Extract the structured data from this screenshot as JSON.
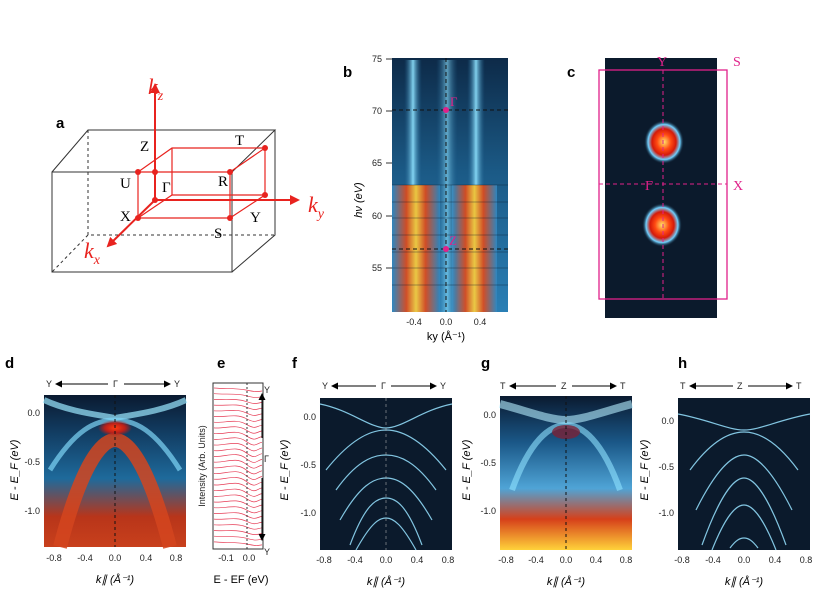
{
  "colors": {
    "bz_red": "#e8231f",
    "magenta": "#e0218a",
    "dark": "#0b1a2c"
  },
  "panels": {
    "a": {
      "label": "a",
      "axes": {
        "kz_base": "k",
        "kz_sub": "z",
        "ky_base": "k",
        "ky_sub": "y",
        "kx_base": "k",
        "kx_sub": "x"
      },
      "points": {
        "Z": "Z",
        "T": "T",
        "U": "U",
        "R": "R",
        "G": "Γ",
        "X": "X",
        "Y": "Y",
        "S": "S"
      }
    },
    "b": {
      "label": "b",
      "ylabel": "hν (eV)",
      "yticks": [
        "75",
        "70",
        "65",
        "60",
        "55"
      ],
      "xticks": [
        "-0.4",
        "0.0",
        "0.4"
      ],
      "xlabel": "ky (Å⁻¹)",
      "marker_top": "Γ",
      "marker_bottom": "Z"
    },
    "c": {
      "label": "c",
      "points": {
        "Y": "Y",
        "S": "S",
        "G": "Γ",
        "X": "X"
      }
    },
    "d": {
      "label": "d",
      "path": [
        "Y",
        "Γ",
        "Y"
      ],
      "ylabel": "E - E_F (eV)",
      "yticks": [
        "0.0",
        "-0.5",
        "-1.0"
      ],
      "xticks": [
        "-0.8",
        "-0.4",
        "0.0",
        "0.4",
        "0.8"
      ],
      "xlabel": "k∥ (Å⁻¹)"
    },
    "e": {
      "label": "e",
      "ylabel": "Intensity (Arb. Units)",
      "xticks": [
        "-0.1",
        "0.0"
      ],
      "xlabel": "E - EF (eV)",
      "right_labels": [
        "Y",
        "Γ",
        "Y"
      ]
    },
    "f": {
      "label": "f",
      "path": [
        "Y",
        "Γ",
        "Y"
      ],
      "ylabel": "E - E_F (eV)",
      "yticks": [
        "0.0",
        "-0.5",
        "-1.0"
      ],
      "xticks": [
        "-0.8",
        "-0.4",
        "0.0",
        "0.4",
        "0.8"
      ],
      "xlabel": "k∥ (Å⁻¹)"
    },
    "g": {
      "label": "g",
      "path": [
        "T",
        "Z",
        "T"
      ],
      "ylabel": "E - E_F (eV)",
      "yticks": [
        "0.0",
        "-0.5",
        "-1.0"
      ],
      "xticks": [
        "-0.8",
        "-0.4",
        "0.0",
        "0.4",
        "0.8"
      ],
      "xlabel": "k∥ (Å⁻¹)"
    },
    "h": {
      "label": "h",
      "path": [
        "T",
        "Z",
        "T"
      ],
      "ylabel": "E - E_F (eV)",
      "yticks": [
        "0.0",
        "-0.5",
        "-1.0"
      ],
      "xticks": [
        "-0.8",
        "-0.4",
        "0.0",
        "0.4",
        "0.8"
      ],
      "xlabel": "k∥ (Å⁻¹)"
    }
  }
}
